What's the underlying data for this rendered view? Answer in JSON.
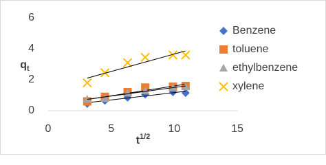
{
  "chart_data": {
    "type": "scatter",
    "xlabel": "t",
    "xlabel_sup": "1/2",
    "ylabel": "q",
    "ylabel_sub": "t",
    "xlim": [
      0,
      15
    ],
    "xticks": [
      0,
      5,
      10,
      15
    ],
    "ylim": [
      0,
      6
    ],
    "yticks": [
      0,
      2,
      4,
      6
    ],
    "grid": false,
    "trendline": true,
    "legend": "right",
    "series": [
      {
        "name": "Benzene",
        "color": "#4472c4",
        "marker": "diamond",
        "x": [
          3.1,
          4.5,
          6.3,
          7.7,
          9.9,
          10.9
        ],
        "values": [
          0.45,
          0.65,
          0.85,
          1.05,
          1.2,
          1.15
        ]
      },
      {
        "name": "toluene",
        "color": "#ed7d31",
        "marker": "square",
        "x": [
          3.1,
          4.5,
          6.3,
          7.7,
          9.9,
          10.9
        ],
        "values": [
          0.6,
          0.9,
          1.2,
          1.5,
          1.55,
          1.6
        ]
      },
      {
        "name": "ethylbenzene",
        "color": "#a5a5a5",
        "marker": "triangle",
        "x": [
          3.1,
          4.5,
          6.3,
          7.7,
          9.9,
          10.9
        ],
        "values": [
          0.75,
          0.8,
          1.15,
          1.3,
          1.5,
          1.55
        ]
      },
      {
        "name": "xylene",
        "color": "#ffc000",
        "marker": "x",
        "x": [
          3.1,
          4.5,
          6.3,
          7.7,
          9.9,
          10.9
        ],
        "values": [
          1.8,
          2.45,
          3.1,
          3.45,
          3.6,
          3.6
        ]
      }
    ]
  }
}
